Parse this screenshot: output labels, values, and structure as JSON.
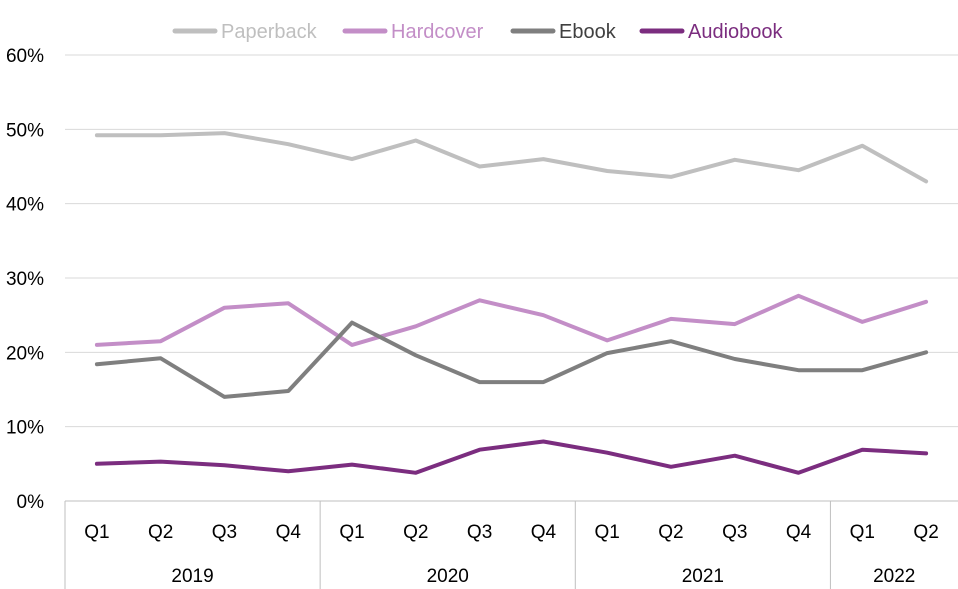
{
  "chart_data": {
    "type": "line",
    "title": "",
    "xlabel": "",
    "ylabel": "",
    "ylim": [
      0,
      60
    ],
    "y_ticks": [
      {
        "value": 0,
        "label": "0%"
      },
      {
        "value": 10,
        "label": "10%"
      },
      {
        "value": 20,
        "label": "20%"
      },
      {
        "value": 30,
        "label": "30%"
      },
      {
        "value": 40,
        "label": "40%"
      },
      {
        "value": 50,
        "label": "50%"
      },
      {
        "value": 60,
        "label": "60%"
      }
    ],
    "categories": [
      "Q1",
      "Q2",
      "Q3",
      "Q4",
      "Q1",
      "Q2",
      "Q3",
      "Q4",
      "Q1",
      "Q2",
      "Q3",
      "Q4",
      "Q1",
      "Q2"
    ],
    "year_groups": [
      {
        "label": "2019",
        "count": 4
      },
      {
        "label": "2020",
        "count": 4
      },
      {
        "label": "2021",
        "count": 4
      },
      {
        "label": "2022",
        "count": 2
      }
    ],
    "grid": true,
    "legend_position": "top",
    "series": [
      {
        "name": "Paperback",
        "color": "#bfbfbf",
        "values": [
          49.2,
          49.2,
          49.5,
          48.0,
          46.0,
          48.5,
          45.0,
          46.0,
          44.4,
          43.6,
          45.9,
          44.5,
          47.8,
          43.0
        ]
      },
      {
        "name": "Hardcover",
        "color": "#c38ec7",
        "values": [
          21.0,
          21.5,
          26.0,
          26.6,
          21.0,
          23.5,
          27.0,
          25.0,
          21.6,
          24.5,
          23.8,
          27.6,
          24.1,
          26.8
        ]
      },
      {
        "name": "Ebook",
        "color": "#7f7f7f",
        "values": [
          18.4,
          19.2,
          14.0,
          14.8,
          24.0,
          19.6,
          16.0,
          16.0,
          19.9,
          21.5,
          19.1,
          17.6,
          17.6,
          20.0
        ]
      },
      {
        "name": "Audiobook",
        "color": "#7b2d7f",
        "values": [
          5.0,
          5.3,
          4.8,
          4.0,
          4.9,
          3.8,
          6.9,
          8.0,
          6.5,
          4.6,
          6.1,
          3.8,
          6.9,
          6.4
        ]
      }
    ]
  }
}
